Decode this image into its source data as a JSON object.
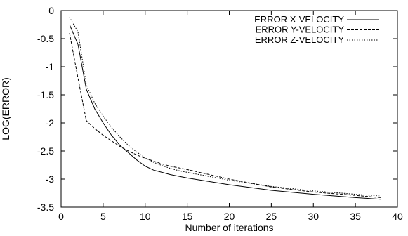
{
  "chart_data": {
    "type": "line",
    "title": "",
    "xlabel": "Number of iterations",
    "ylabel": "LOG(ERROR)",
    "xlim": [
      0,
      40
    ],
    "ylim": [
      -3.5,
      0
    ],
    "xticks": [
      0,
      5,
      10,
      15,
      20,
      25,
      30,
      35,
      40
    ],
    "yticks": [
      0,
      -0.5,
      -1,
      -1.5,
      -2,
      -2.5,
      -3,
      -3.5
    ],
    "xtick_labels": [
      "0",
      "5",
      "10",
      "15",
      "20",
      "25",
      "30",
      "35",
      "40"
    ],
    "ytick_labels": [
      "0",
      "-0.5",
      "-1",
      "-1.5",
      "-2",
      "-2.5",
      "-3",
      "-3.5"
    ],
    "grid": false,
    "legend_position": "top-right",
    "series": [
      {
        "name": "ERROR X-VELOCITY",
        "style": "solid",
        "x": [
          1,
          2,
          3,
          4,
          5,
          6,
          7,
          8,
          9,
          10,
          11,
          12,
          13,
          14,
          15,
          20,
          25,
          30,
          35,
          38
        ],
        "y": [
          -0.25,
          -0.6,
          -1.4,
          -1.75,
          -2.0,
          -2.22,
          -2.4,
          -2.53,
          -2.66,
          -2.77,
          -2.84,
          -2.88,
          -2.92,
          -2.95,
          -2.98,
          -3.1,
          -3.2,
          -3.27,
          -3.33,
          -3.36
        ]
      },
      {
        "name": "ERROR Y-VELOCITY",
        "style": "dashed",
        "x": [
          1,
          2,
          3,
          4,
          5,
          6,
          7,
          8,
          9,
          10,
          11,
          12,
          13,
          14,
          15,
          20,
          25,
          30,
          35,
          38
        ],
        "y": [
          -0.4,
          -1.2,
          -1.96,
          -2.1,
          -2.22,
          -2.32,
          -2.42,
          -2.5,
          -2.57,
          -2.63,
          -2.68,
          -2.73,
          -2.77,
          -2.8,
          -2.83,
          -3.0,
          -3.14,
          -3.23,
          -3.29,
          -3.33
        ]
      },
      {
        "name": "ERROR Z-VELOCITY",
        "style": "dotted",
        "x": [
          1,
          2,
          3,
          4,
          5,
          6,
          7,
          8,
          9,
          10,
          11,
          12,
          13,
          14,
          15,
          20,
          25,
          30,
          35,
          38
        ],
        "y": [
          -0.12,
          -0.38,
          -1.32,
          -1.65,
          -1.88,
          -2.08,
          -2.25,
          -2.4,
          -2.52,
          -2.62,
          -2.7,
          -2.76,
          -2.81,
          -2.85,
          -2.88,
          -3.02,
          -3.13,
          -3.21,
          -3.27,
          -3.3
        ]
      }
    ]
  }
}
